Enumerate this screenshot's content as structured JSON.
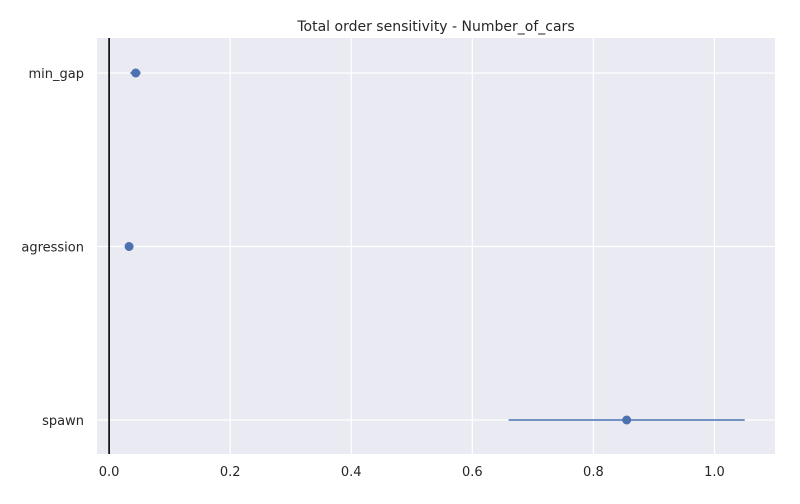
{
  "chart_data": {
    "type": "scatter",
    "title": "Total order sensitivity  -  Number_of_cars",
    "xlabel": "",
    "ylabel": "",
    "xlim": [
      -0.02,
      1.1
    ],
    "xticks": [
      0.0,
      0.2,
      0.4,
      0.6,
      0.8,
      1.0
    ],
    "xtick_labels": [
      "0.0",
      "0.2",
      "0.4",
      "0.6",
      "0.8",
      "1.0"
    ],
    "categories": [
      "min_gap",
      "agression",
      "spawn"
    ],
    "points": [
      {
        "category": "min_gap",
        "value": 0.044,
        "ci_low": 0.035,
        "ci_high": 0.052
      },
      {
        "category": "agression",
        "value": 0.033,
        "ci_low": 0.029,
        "ci_high": 0.038
      },
      {
        "category": "spawn",
        "value": 0.855,
        "ci_low": 0.66,
        "ci_high": 1.05
      }
    ],
    "reference_line_x": 0.0,
    "grid": true,
    "colors": {
      "background": "#eaeaf2",
      "grid": "#ffffff",
      "marker": "#4c72b0",
      "reference_line": "#000000"
    }
  }
}
